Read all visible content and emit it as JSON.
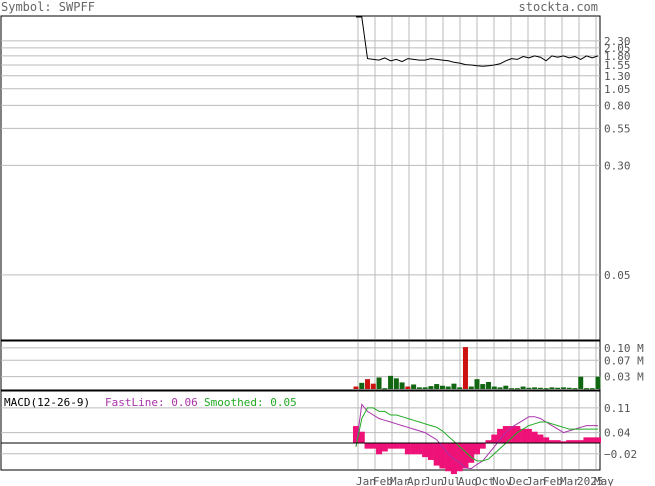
{
  "header": {
    "symbol_label": "Symbol: SWPFF",
    "site": "stockta.com"
  },
  "chart_data": [
    {
      "type": "line",
      "name": "price",
      "scale": "log",
      "ylim": [
        0.0175,
        3.4
      ],
      "y_ticks": [
        2.3,
        2.05,
        1.8,
        1.55,
        1.3,
        1.05,
        0.8,
        0.55,
        0.3,
        0.05
      ],
      "x_month_labels": [
        "Jan",
        "Feb",
        "Mar",
        "Apr",
        "Jun",
        "Jul",
        "Aug",
        "Oct",
        "Nov",
        "Dec",
        "Jan",
        "Feb",
        "Mar",
        "2025",
        "May"
      ],
      "price_values": [
        3.4,
        3.4,
        1.72,
        1.7,
        1.68,
        1.74,
        1.66,
        1.7,
        1.64,
        1.72,
        1.7,
        1.68,
        1.68,
        1.72,
        1.7,
        1.68,
        1.66,
        1.62,
        1.6,
        1.56,
        1.55,
        1.53,
        1.52,
        1.53,
        1.55,
        1.58,
        1.66,
        1.72,
        1.7,
        1.78,
        1.74,
        1.8,
        1.76,
        1.66,
        1.8,
        1.76,
        1.8,
        1.74,
        1.78,
        1.7,
        1.8,
        1.74,
        1.8
      ]
    },
    {
      "type": "bar",
      "name": "volume",
      "y_ticks": [
        "0.10 M",
        "0.07 M",
        "0.03 M"
      ],
      "volume_values": [
        0.006,
        0.015,
        0.024,
        0.013,
        0.028,
        0.002,
        0.032,
        0.026,
        0.016,
        0.006,
        0.011,
        0.004,
        0.004,
        0.007,
        0.012,
        0.008,
        0.006,
        0.013,
        0.004,
        0.102,
        0.006,
        0.024,
        0.012,
        0.017,
        0.006,
        0.004,
        0.008,
        0.002,
        0.002,
        0.006,
        0.003,
        0.004,
        0.003,
        0.002,
        0.004,
        0.003,
        0.004,
        0.003,
        0.002,
        0.03,
        0.002,
        0.002,
        0.03
      ],
      "volume_colors": [
        "r",
        "g",
        "r",
        "r",
        "g",
        "g",
        "g",
        "g",
        "g",
        "r",
        "g",
        "g",
        "g",
        "g",
        "g",
        "g",
        "g",
        "g",
        "g",
        "r",
        "g",
        "g",
        "g",
        "g",
        "g",
        "g",
        "g",
        "g",
        "g",
        "g",
        "g",
        "g",
        "g",
        "g",
        "g",
        "g",
        "g",
        "g",
        "g",
        "g",
        "g",
        "g",
        "g"
      ]
    },
    {
      "type": "line",
      "name": "macd",
      "legend": {
        "title": "MACD(12-26-9)",
        "fast_label": "FastLine: 0.06",
        "smoothed_label": "Smoothed: 0.05"
      },
      "y_ticks": [
        "0.11",
        "0.04",
        "−0.02"
      ],
      "ylim": [
        -0.063,
        0.155
      ],
      "fast": [
        0.0,
        0.12,
        0.1,
        0.09,
        0.08,
        0.075,
        0.07,
        0.065,
        0.06,
        0.055,
        0.05,
        0.045,
        0.04,
        0.03,
        0.02,
        0.0,
        -0.02,
        -0.035,
        -0.045,
        -0.06,
        -0.062,
        -0.05,
        -0.04,
        -0.02,
        0.0,
        0.02,
        0.04,
        0.055,
        0.065,
        0.075,
        0.085,
        0.085,
        0.08,
        0.07,
        0.06,
        0.05,
        0.04,
        0.045,
        0.05,
        0.055,
        0.06,
        0.06,
        0.06
      ],
      "smoothed": [
        0.0,
        0.08,
        0.11,
        0.11,
        0.1,
        0.1,
        0.09,
        0.09,
        0.085,
        0.08,
        0.075,
        0.07,
        0.065,
        0.06,
        0.055,
        0.045,
        0.03,
        0.015,
        0.0,
        -0.015,
        -0.03,
        -0.04,
        -0.04,
        -0.035,
        -0.02,
        -0.005,
        0.01,
        0.025,
        0.04,
        0.05,
        0.06,
        0.065,
        0.07,
        0.07,
        0.065,
        0.06,
        0.055,
        0.05,
        0.05,
        0.05,
        0.05,
        0.05,
        0.05
      ],
      "histogram": [
        0.03,
        0.02,
        -0.01,
        -0.01,
        -0.02,
        -0.015,
        -0.01,
        -0.01,
        -0.01,
        -0.02,
        -0.02,
        -0.02,
        -0.025,
        -0.03,
        -0.04,
        -0.045,
        -0.05,
        -0.055,
        -0.05,
        -0.045,
        -0.035,
        -0.02,
        -0.01,
        0.005,
        0.015,
        0.025,
        0.03,
        0.03,
        0.03,
        0.025,
        0.025,
        0.02,
        0.015,
        0.01,
        0.005,
        0.005,
        0.003,
        0.005,
        0.005,
        0.005,
        0.01,
        0.01,
        0.01
      ]
    }
  ]
}
